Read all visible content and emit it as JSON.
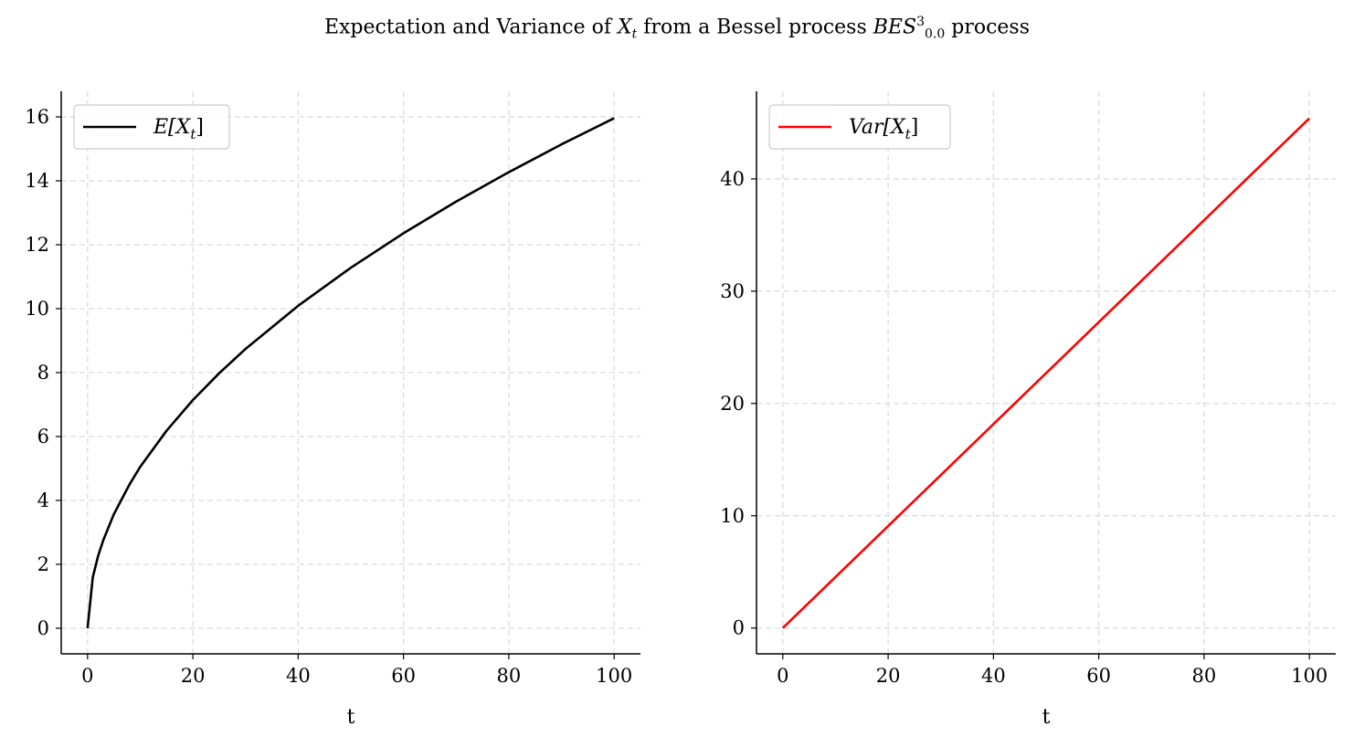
{
  "figure": {
    "title": {
      "pre": "Expectation and Variance of ",
      "var": "X",
      "var_sub": "t",
      "mid": " from a Bessel process ",
      "proc": "BES",
      "proc_sup": "3",
      "proc_sub": "0.0",
      "post": " process"
    }
  },
  "chart_data": [
    {
      "type": "line",
      "xlabel": "t",
      "ylabel": "",
      "xlim": [
        -5,
        105
      ],
      "ylim": [
        -0.8,
        16.8
      ],
      "xticks": [
        0,
        20,
        40,
        60,
        80,
        100
      ],
      "yticks": [
        0,
        2,
        4,
        6,
        8,
        10,
        12,
        14,
        16
      ],
      "grid": true,
      "legend": "top-left",
      "series": [
        {
          "name": "E[X_t]",
          "legend_main": "E[X",
          "legend_sub": "t",
          "legend_end": "]",
          "color": "#000000",
          "x": [
            0,
            1,
            2,
            3,
            5,
            8,
            10,
            15,
            20,
            25,
            30,
            40,
            50,
            60,
            70,
            80,
            90,
            100
          ],
          "y": [
            0,
            1.6,
            2.26,
            2.76,
            3.57,
            4.51,
            5.05,
            6.18,
            7.14,
            7.98,
            8.74,
            10.09,
            11.28,
            12.36,
            13.35,
            14.27,
            15.14,
            15.96
          ]
        }
      ]
    },
    {
      "type": "line",
      "xlabel": "t",
      "ylabel": "",
      "xlim": [
        -5,
        105
      ],
      "ylim": [
        -2.3,
        47.8
      ],
      "xticks": [
        0,
        20,
        40,
        60,
        80,
        100
      ],
      "yticks": [
        0,
        10,
        20,
        30,
        40
      ],
      "grid": true,
      "legend": "top-left",
      "series": [
        {
          "name": "Var[X_t]",
          "legend_main": "Var[X",
          "legend_sub": "t",
          "legend_end": "]",
          "color": "#ff0000",
          "x": [
            0,
            100
          ],
          "y": [
            0,
            45.4
          ]
        }
      ]
    }
  ]
}
